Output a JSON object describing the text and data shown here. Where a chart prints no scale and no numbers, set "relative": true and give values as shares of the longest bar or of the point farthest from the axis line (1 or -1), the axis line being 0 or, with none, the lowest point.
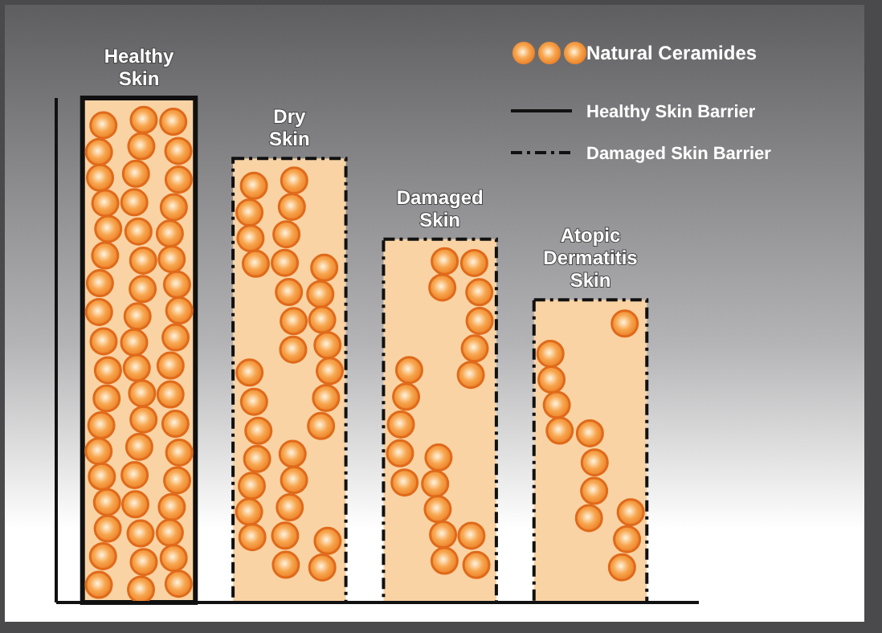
{
  "chart_data": {
    "type": "bar",
    "relative": true,
    "categories": [
      "Healthy Skin",
      "Dry Skin",
      "Damaged Skin",
      "Atopic Dermatitis Skin"
    ],
    "series": [
      {
        "name": "Natural Ceramides",
        "color": "#f9d3a4",
        "values": [
          1,
          0.88,
          0.72,
          0.6
        ]
      }
    ],
    "legend": "top right",
    "annotations": [
      "Healthy Skin Barrier",
      "Damaged Skin Barrier"
    ]
  }
}
